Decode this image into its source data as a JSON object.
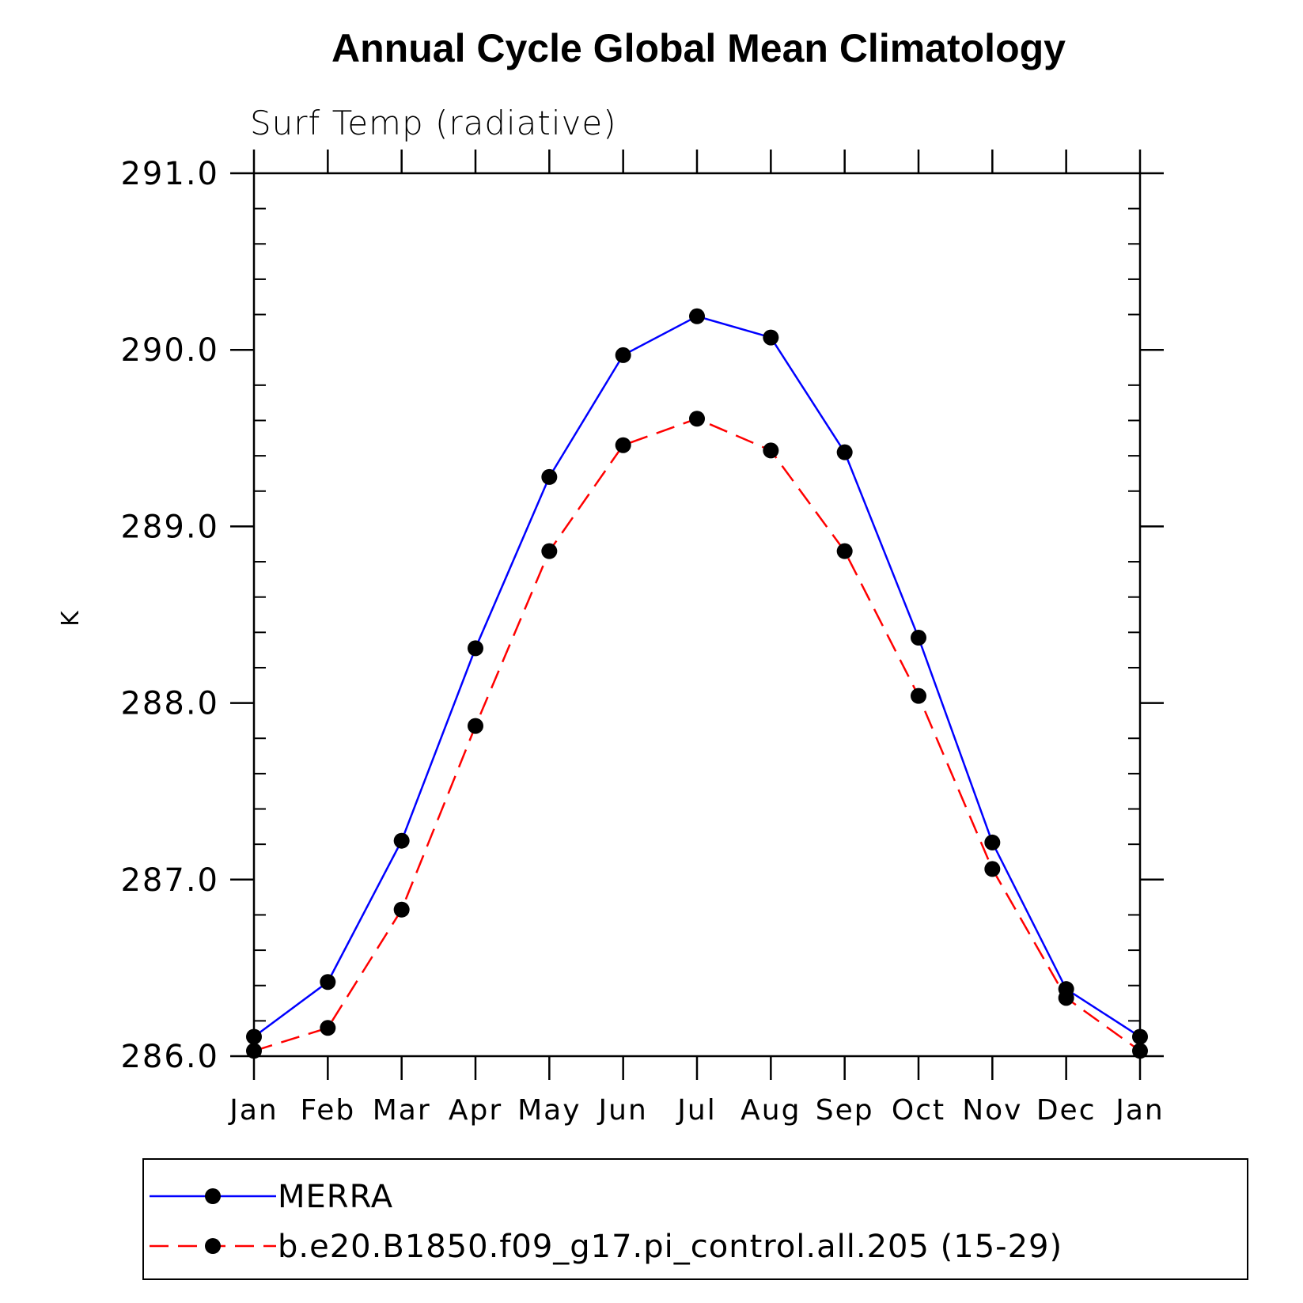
{
  "chart_data": {
    "type": "line",
    "title": "Annual Cycle Global Mean Climatology",
    "subtitle": "Surf Temp (radiative)",
    "xlabel": "",
    "ylabel": "K",
    "categories": [
      "Jan",
      "Feb",
      "Mar",
      "Apr",
      "May",
      "Jun",
      "Jul",
      "Aug",
      "Sep",
      "Oct",
      "Nov",
      "Dec",
      "Jan"
    ],
    "ylim": [
      286.0,
      291.0
    ],
    "yticks": [
      286.0,
      287.0,
      288.0,
      289.0,
      290.0,
      291.0
    ],
    "ytick_labels": [
      "286.0",
      "287.0",
      "288.0",
      "289.0",
      "290.0",
      "291.0"
    ],
    "y_minor_step": 0.2,
    "grid": false,
    "legend_position": "bottom",
    "series": [
      {
        "name": "MERRA",
        "color": "#0000ff",
        "line_style": "solid",
        "marker": "dot",
        "values": [
          286.11,
          286.42,
          287.22,
          288.31,
          289.28,
          289.97,
          290.19,
          290.07,
          289.42,
          288.37,
          287.21,
          286.38,
          286.11
        ]
      },
      {
        "name": "b.e20.B1850.f09_g17.pi_control.all.205 (15-29)",
        "color": "#ff0000",
        "line_style": "dashed",
        "marker": "dot",
        "values": [
          286.03,
          286.16,
          286.83,
          287.87,
          288.86,
          289.46,
          289.61,
          289.43,
          288.86,
          288.04,
          287.06,
          286.33,
          286.03
        ]
      }
    ]
  }
}
